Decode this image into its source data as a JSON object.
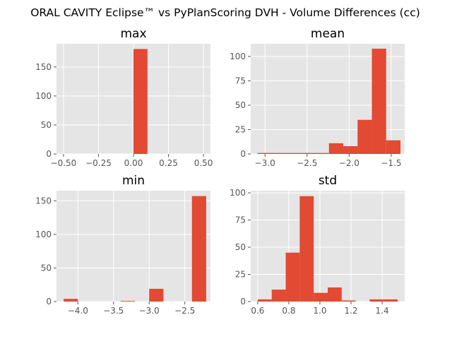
{
  "figure": {
    "title": "ORAL CAVITY Eclipse™ vs PyPlanScoring DVH - Volume Differences (cc)"
  },
  "colors": {
    "bar": "#E24A33",
    "panel_bg": "#E5E5E5",
    "grid": "#FFFFFF",
    "tick_text": "#555555"
  },
  "chart_data": [
    {
      "type": "bar",
      "title": "max",
      "xlabel": "",
      "ylabel": "",
      "xlim": [
        -0.55,
        0.55
      ],
      "ylim": [
        0,
        190
      ],
      "xticks": [
        -0.5,
        -0.25,
        0.0,
        0.25,
        0.5
      ],
      "xtick_labels": [
        "−0.50",
        "−0.25",
        "0.00",
        "0.25",
        "0.50"
      ],
      "yticks": [
        0,
        50,
        100,
        150
      ],
      "ytick_labels": [
        "0",
        "50",
        "100",
        "150"
      ],
      "grid": true,
      "bins": [
        {
          "x0": 0.0,
          "x1": 0.1,
          "count": 181
        }
      ]
    },
    {
      "type": "bar",
      "title": "mean",
      "xlabel": "",
      "ylabel": "",
      "xlim": [
        -3.17,
        -1.34
      ],
      "ylim": [
        0,
        113
      ],
      "xticks": [
        -3.0,
        -2.5,
        -2.0,
        -1.5
      ],
      "xtick_labels": [
        "−3.0",
        "−2.5",
        "−2.0",
        "−1.5"
      ],
      "yticks": [
        0,
        25,
        50,
        75,
        100
      ],
      "ytick_labels": [
        "0",
        "25",
        "50",
        "75",
        "100"
      ],
      "grid": true,
      "bins": [
        {
          "x0": -3.09,
          "x1": -2.92,
          "count": 1
        },
        {
          "x0": -2.92,
          "x1": -2.75,
          "count": 1
        },
        {
          "x0": -2.75,
          "x1": -2.58,
          "count": 1
        },
        {
          "x0": -2.58,
          "x1": -2.41,
          "count": 1
        },
        {
          "x0": -2.41,
          "x1": -2.24,
          "count": 1
        },
        {
          "x0": -2.24,
          "x1": -2.07,
          "count": 11
        },
        {
          "x0": -2.07,
          "x1": -1.9,
          "count": 8
        },
        {
          "x0": -1.9,
          "x1": -1.73,
          "count": 35
        },
        {
          "x0": -1.73,
          "x1": -1.56,
          "count": 108
        },
        {
          "x0": -1.56,
          "x1": -1.39,
          "count": 14
        }
      ]
    },
    {
      "type": "bar",
      "title": "min",
      "xlabel": "",
      "ylabel": "",
      "xlim": [
        -4.3,
        -2.14
      ],
      "ylim": [
        0,
        165
      ],
      "xticks": [
        -4.0,
        -3.5,
        -3.0,
        -2.5
      ],
      "xtick_labels": [
        "−4.0",
        "−3.5",
        "−3.0",
        "−2.5"
      ],
      "yticks": [
        0,
        50,
        100,
        150
      ],
      "ytick_labels": [
        "0",
        "50",
        "100",
        "150"
      ],
      "grid": true,
      "bins": [
        {
          "x0": -4.2,
          "x1": -4.0,
          "count": 4
        },
        {
          "x0": -3.4,
          "x1": -3.2,
          "count": 1
        },
        {
          "x0": -3.0,
          "x1": -2.8,
          "count": 19
        },
        {
          "x0": -2.4,
          "x1": -2.2,
          "count": 157
        }
      ]
    },
    {
      "type": "bar",
      "title": "std",
      "xlabel": "",
      "ylabel": "",
      "xlim": [
        0.555,
        1.545
      ],
      "ylim": [
        0,
        102
      ],
      "xticks": [
        0.6,
        0.8,
        1.0,
        1.2,
        1.4
      ],
      "xtick_labels": [
        "0.6",
        "0.8",
        "1.0",
        "1.2",
        "1.4"
      ],
      "yticks": [
        0,
        25,
        50,
        75,
        100
      ],
      "ytick_labels": [
        "0",
        "25",
        "50",
        "75",
        "100"
      ],
      "grid": true,
      "bins": [
        {
          "x0": 0.6,
          "x1": 0.69,
          "count": 2
        },
        {
          "x0": 0.69,
          "x1": 0.78,
          "count": 11
        },
        {
          "x0": 0.78,
          "x1": 0.87,
          "count": 45
        },
        {
          "x0": 0.87,
          "x1": 0.96,
          "count": 97
        },
        {
          "x0": 0.96,
          "x1": 1.05,
          "count": 8
        },
        {
          "x0": 1.05,
          "x1": 1.14,
          "count": 13
        },
        {
          "x0": 1.14,
          "x1": 1.23,
          "count": 1
        },
        {
          "x0": 1.32,
          "x1": 1.41,
          "count": 2
        },
        {
          "x0": 1.41,
          "x1": 1.5,
          "count": 2
        }
      ]
    }
  ]
}
